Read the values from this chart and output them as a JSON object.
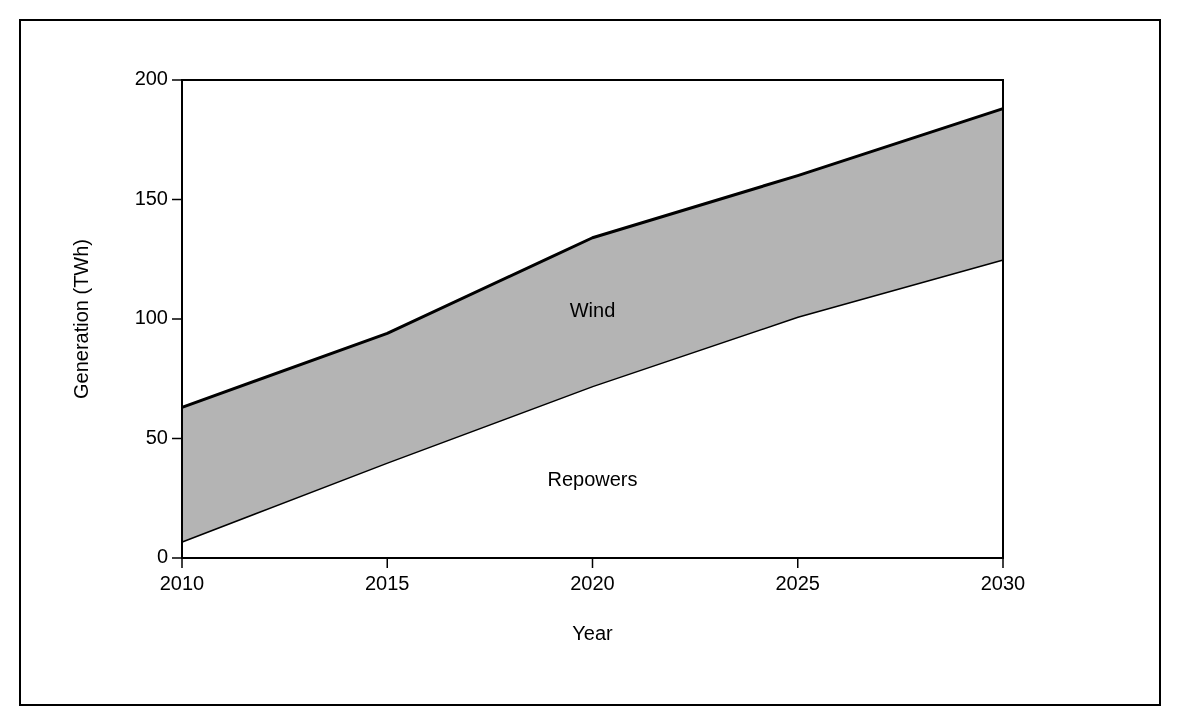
{
  "chart_data": {
    "type": "area",
    "stacked": true,
    "xlabel": "Year",
    "ylabel": "Generation (TWh)",
    "x": [
      2010,
      2015,
      2020,
      2025,
      2030
    ],
    "xlim": [
      2010,
      2030
    ],
    "xticks": [
      2010,
      2015,
      2020,
      2025,
      2030
    ],
    "ylim": [
      0,
      200
    ],
    "yticks": [
      0,
      50,
      100,
      150,
      200
    ],
    "series": [
      {
        "name": "Repowers",
        "color": "#ffffff",
        "values": [
          7,
          40,
          72,
          101,
          125
        ]
      },
      {
        "name": "Wind",
        "color": "#b4b4b4",
        "values": [
          56,
          54,
          62,
          59,
          63
        ]
      }
    ]
  }
}
